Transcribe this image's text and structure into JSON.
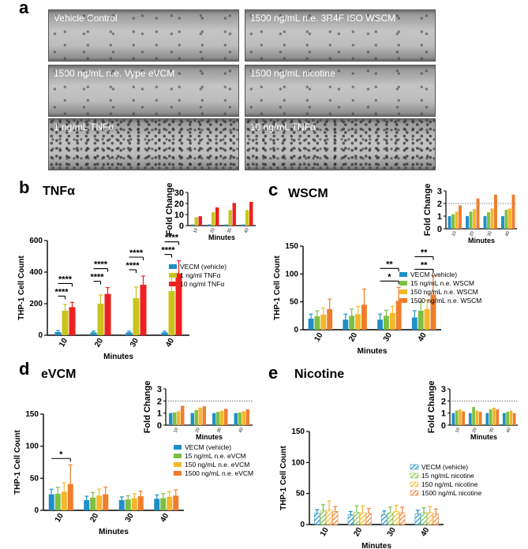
{
  "panel_letters": {
    "a": "a",
    "b": "b",
    "c": "c",
    "d": "d",
    "e": "e"
  },
  "micrographs": [
    {
      "label": "Vehicle Control",
      "dense": false
    },
    {
      "label": "1500 ng/mL  n.e. 3R4F ISO WSCM",
      "dense": false
    },
    {
      "label": "1500 ng/mL  n.e.  Vype eVCM",
      "dense": false
    },
    {
      "label": "1500 ng/mL  nicotine",
      "dense": false
    },
    {
      "label": "1 ng/mL TNFα",
      "dense": true
    },
    {
      "label": "10 ng/mL TNFα",
      "dense": true
    }
  ],
  "chart_data": [
    {
      "id": "b",
      "title": "TNFα",
      "type": "bar",
      "xlabel": "Minutes",
      "ylabel": "THP-1 Cell Count",
      "categories": [
        "10",
        "20",
        "30",
        "40"
      ],
      "ylim": [
        0,
        600
      ],
      "yticks": [
        0,
        200,
        400,
        600
      ],
      "series": [
        {
          "name": "VECM (vehicle)",
          "color": "#1f8fc8",
          "pattern": "solid",
          "values": [
            20,
            18,
            18,
            18
          ],
          "err": [
            10,
            8,
            8,
            8
          ]
        },
        {
          "name": "1 ng/ml TNFα",
          "color": "#c8c41a",
          "pattern": "solid",
          "values": [
            155,
            200,
            235,
            280
          ],
          "err": [
            40,
            55,
            70,
            90
          ]
        },
        {
          "name": "10 ng/ml TNFα",
          "color": "#ee2020",
          "pattern": "solid",
          "values": [
            178,
            262,
            320,
            392
          ],
          "err": [
            30,
            40,
            55,
            80
          ]
        }
      ],
      "significance": [
        {
          "cat": 0,
          "from": 0,
          "to": 1,
          "label": "****",
          "level": 0
        },
        {
          "cat": 0,
          "from": 0,
          "to": 2,
          "label": "****",
          "level": 1
        },
        {
          "cat": 1,
          "from": 0,
          "to": 1,
          "label": "****",
          "level": 0
        },
        {
          "cat": 1,
          "from": 0,
          "to": 2,
          "label": "****",
          "level": 1
        },
        {
          "cat": 2,
          "from": 0,
          "to": 1,
          "label": "****",
          "level": 0
        },
        {
          "cat": 2,
          "from": 0,
          "to": 2,
          "label": "****",
          "level": 1
        },
        {
          "cat": 3,
          "from": 0,
          "to": 1,
          "label": "****",
          "level": 0
        },
        {
          "cat": 3,
          "from": 0,
          "to": 2,
          "label": "****",
          "level": 1
        }
      ],
      "inset": {
        "ylabel": "Fold Change",
        "xlabel": "Minutes",
        "categories": [
          "10",
          "20",
          "30",
          "40"
        ],
        "ylim": [
          0,
          30
        ],
        "yticks": [
          0,
          10,
          20,
          30
        ],
        "threshold": null,
        "series": [
          {
            "color": "#1f8fc8",
            "values": [
              1,
              1,
              1,
              1
            ]
          },
          {
            "color": "#c8c41a",
            "values": [
              7.5,
              12,
              14,
              14
            ]
          },
          {
            "color": "#ee2020",
            "values": [
              8.5,
              16.5,
              20.5,
              21.5
            ]
          }
        ]
      }
    },
    {
      "id": "c",
      "title": "WSCM",
      "type": "bar",
      "xlabel": "Minutes",
      "ylabel": "THP-1 Cell Count",
      "categories": [
        "10",
        "20",
        "30",
        "40"
      ],
      "ylim": [
        0,
        150
      ],
      "yticks": [
        0,
        50,
        100,
        150
      ],
      "series": [
        {
          "name": "VECM (vehicle)",
          "color": "#1f8fc8",
          "pattern": "solid",
          "values": [
            20,
            18,
            18,
            22
          ],
          "err": [
            8,
            10,
            10,
            12
          ]
        },
        {
          "name": "15 ng/mL n.e. WSCM",
          "color": "#7bc043",
          "pattern": "solid",
          "values": [
            24,
            25,
            25,
            34
          ],
          "err": [
            10,
            12,
            10,
            16
          ]
        },
        {
          "name": "150 ng/mL n.e. WSCM",
          "color": "#f5b62a",
          "pattern": "solid",
          "values": [
            27,
            28,
            30,
            37
          ],
          "err": [
            12,
            14,
            12,
            16
          ]
        },
        {
          "name": "1500 ng/mL n.e. WSCM",
          "color": "#f07d2c",
          "pattern": "solid",
          "values": [
            37,
            45,
            52,
            63
          ],
          "err": [
            18,
            28,
            24,
            34
          ]
        }
      ],
      "significance": [
        {
          "cat": 2,
          "from": 0,
          "to": 3,
          "label": "*",
          "level": 0
        },
        {
          "cat": 2,
          "from": 0,
          "to": 3,
          "label": "**",
          "level": 1
        },
        {
          "cat": 3,
          "from": 0,
          "to": 3,
          "label": "**",
          "level": 0
        },
        {
          "cat": 3,
          "from": 0,
          "to": 3,
          "label": "**",
          "level": 1
        }
      ],
      "inset": {
        "ylabel": "Fold Change",
        "xlabel": "Minutes",
        "categories": [
          "10",
          "20",
          "30",
          "40"
        ],
        "ylim": [
          0,
          3
        ],
        "yticks": [
          0,
          1,
          2,
          3
        ],
        "threshold": 2,
        "series": [
          {
            "color": "#1f8fc8",
            "values": [
              1,
              1,
              1,
              1
            ]
          },
          {
            "color": "#7bc043",
            "values": [
              1.15,
              1.35,
              1.3,
              1.5
            ]
          },
          {
            "color": "#f5b62a",
            "values": [
              1.35,
              1.55,
              1.6,
              1.6
            ]
          },
          {
            "color": "#f07d2c",
            "values": [
              1.85,
              2.4,
              2.7,
              2.7
            ]
          }
        ]
      }
    },
    {
      "id": "d",
      "title": "eVCM",
      "type": "bar",
      "xlabel": "Minutes",
      "ylabel": "THP-1 Cell Count",
      "categories": [
        "10",
        "20",
        "30",
        "40"
      ],
      "ylim": [
        0,
        150
      ],
      "yticks": [
        0,
        50,
        100,
        150
      ],
      "series": [
        {
          "name": "VECM (vehicle)",
          "color": "#1f8fc8",
          "pattern": "solid",
          "values": [
            25,
            16,
            16,
            18
          ],
          "err": [
            8,
            6,
            5,
            6
          ]
        },
        {
          "name": "15 ng/mL n.e. eVCM",
          "color": "#7bc043",
          "pattern": "solid",
          "values": [
            26,
            20,
            17,
            19
          ],
          "err": [
            10,
            8,
            6,
            7
          ]
        },
        {
          "name": "150 ng/mL n.e. eVCM",
          "color": "#f5b62a",
          "pattern": "solid",
          "values": [
            29,
            23,
            19,
            21
          ],
          "err": [
            14,
            10,
            7,
            8
          ]
        },
        {
          "name": "1500 ng/mL n.e. eVCM",
          "color": "#f07d2c",
          "pattern": "solid",
          "values": [
            41,
            25,
            22,
            23
          ],
          "err": [
            30,
            11,
            8,
            9
          ]
        }
      ],
      "significance": [
        {
          "cat": 0,
          "from": 0,
          "to": 3,
          "label": "*",
          "level": 0
        }
      ],
      "inset": {
        "ylabel": "Fold Change",
        "xlabel": "Minutes",
        "categories": [
          "10",
          "20",
          "30",
          "40"
        ],
        "ylim": [
          0,
          3
        ],
        "yticks": [
          0,
          1,
          2,
          3
        ],
        "threshold": 2,
        "series": [
          {
            "color": "#1f8fc8",
            "values": [
              1,
              1,
              1,
              1
            ]
          },
          {
            "color": "#7bc043",
            "values": [
              1.05,
              1.25,
              1.1,
              1.05
            ]
          },
          {
            "color": "#f5b62a",
            "values": [
              1.15,
              1.45,
              1.2,
              1.15
            ]
          },
          {
            "color": "#f07d2c",
            "values": [
              1.6,
              1.55,
              1.35,
              1.3
            ]
          }
        ]
      }
    },
    {
      "id": "e",
      "title": "Nicotine",
      "type": "bar",
      "xlabel": "Minutes",
      "ylabel": "THP-1 Cell Count",
      "categories": [
        "10",
        "20",
        "30",
        "40"
      ],
      "ylim": [
        0,
        150
      ],
      "yticks": [
        0,
        50,
        100,
        150
      ],
      "series": [
        {
          "name": "VECM (vehicle)",
          "color": "#1f8fc8",
          "pattern": "hatch",
          "values": [
            18,
            16,
            16,
            17
          ],
          "err": [
            6,
            5,
            6,
            6
          ]
        },
        {
          "name": "15 ng/mL nicotine",
          "color": "#7bc043",
          "pattern": "hatch",
          "values": [
            22,
            20,
            19,
            19
          ],
          "err": [
            10,
            10,
            9,
            8
          ]
        },
        {
          "name": "150 ng/mL nicotine",
          "color": "#f5b62a",
          "pattern": "hatch",
          "values": [
            24,
            19,
            21,
            20
          ],
          "err": [
            14,
            11,
            10,
            9
          ]
        },
        {
          "name": "1500 ng/mL nicotine",
          "color": "#f07d2c",
          "pattern": "hatch",
          "values": [
            21,
            18,
            19,
            17
          ],
          "err": [
            8,
            8,
            9,
            8
          ]
        }
      ],
      "significance": [],
      "inset": {
        "ylabel": "Fold Change",
        "xlabel": "Minutes",
        "categories": [
          "10",
          "20",
          "30",
          "40"
        ],
        "ylim": [
          0,
          3
        ],
        "yticks": [
          0,
          1,
          2,
          3
        ],
        "threshold": 2,
        "series": [
          {
            "color": "#1f8fc8",
            "values": [
              1,
              1,
              1,
              1
            ]
          },
          {
            "color": "#7bc043",
            "values": [
              1.2,
              1.5,
              1.3,
              1.1
            ]
          },
          {
            "color": "#f5b62a",
            "values": [
              1.3,
              1.2,
              1.45,
              1.2
            ]
          },
          {
            "color": "#f07d2c",
            "values": [
              1.15,
              1.1,
              1.3,
              1.0
            ]
          }
        ]
      }
    }
  ]
}
